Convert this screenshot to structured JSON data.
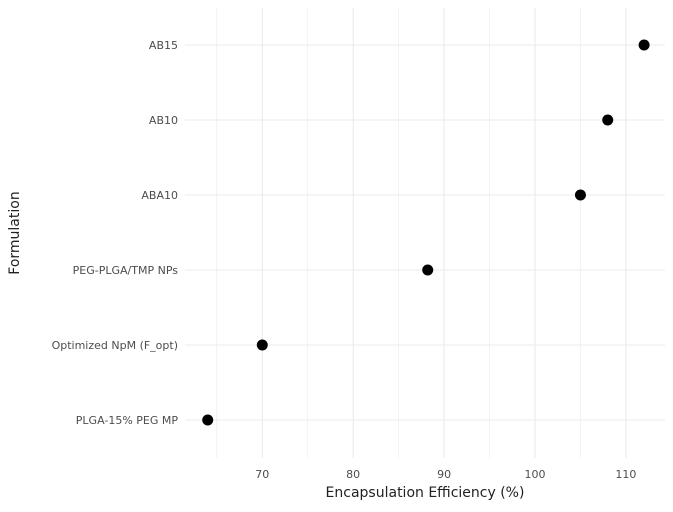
{
  "chart_data": {
    "type": "scatter",
    "title": "",
    "xlabel": "Encapsulation Efficiency (%)",
    "ylabel": "Formulation",
    "xlim": [
      61.5,
      114.3
    ],
    "xticks": [
      70,
      80,
      90,
      100,
      110
    ],
    "grid": true,
    "categories": [
      "AB15",
      "AB10",
      "ABA10",
      "PEG-PLGA/TMP NPs",
      "Optimized NpM (F_opt)",
      "PLGA-15% PEG MP"
    ],
    "values": [
      112,
      108,
      105,
      88.2,
      70,
      64
    ],
    "point_color": "#000000",
    "grid_color": "#ebebeb"
  }
}
